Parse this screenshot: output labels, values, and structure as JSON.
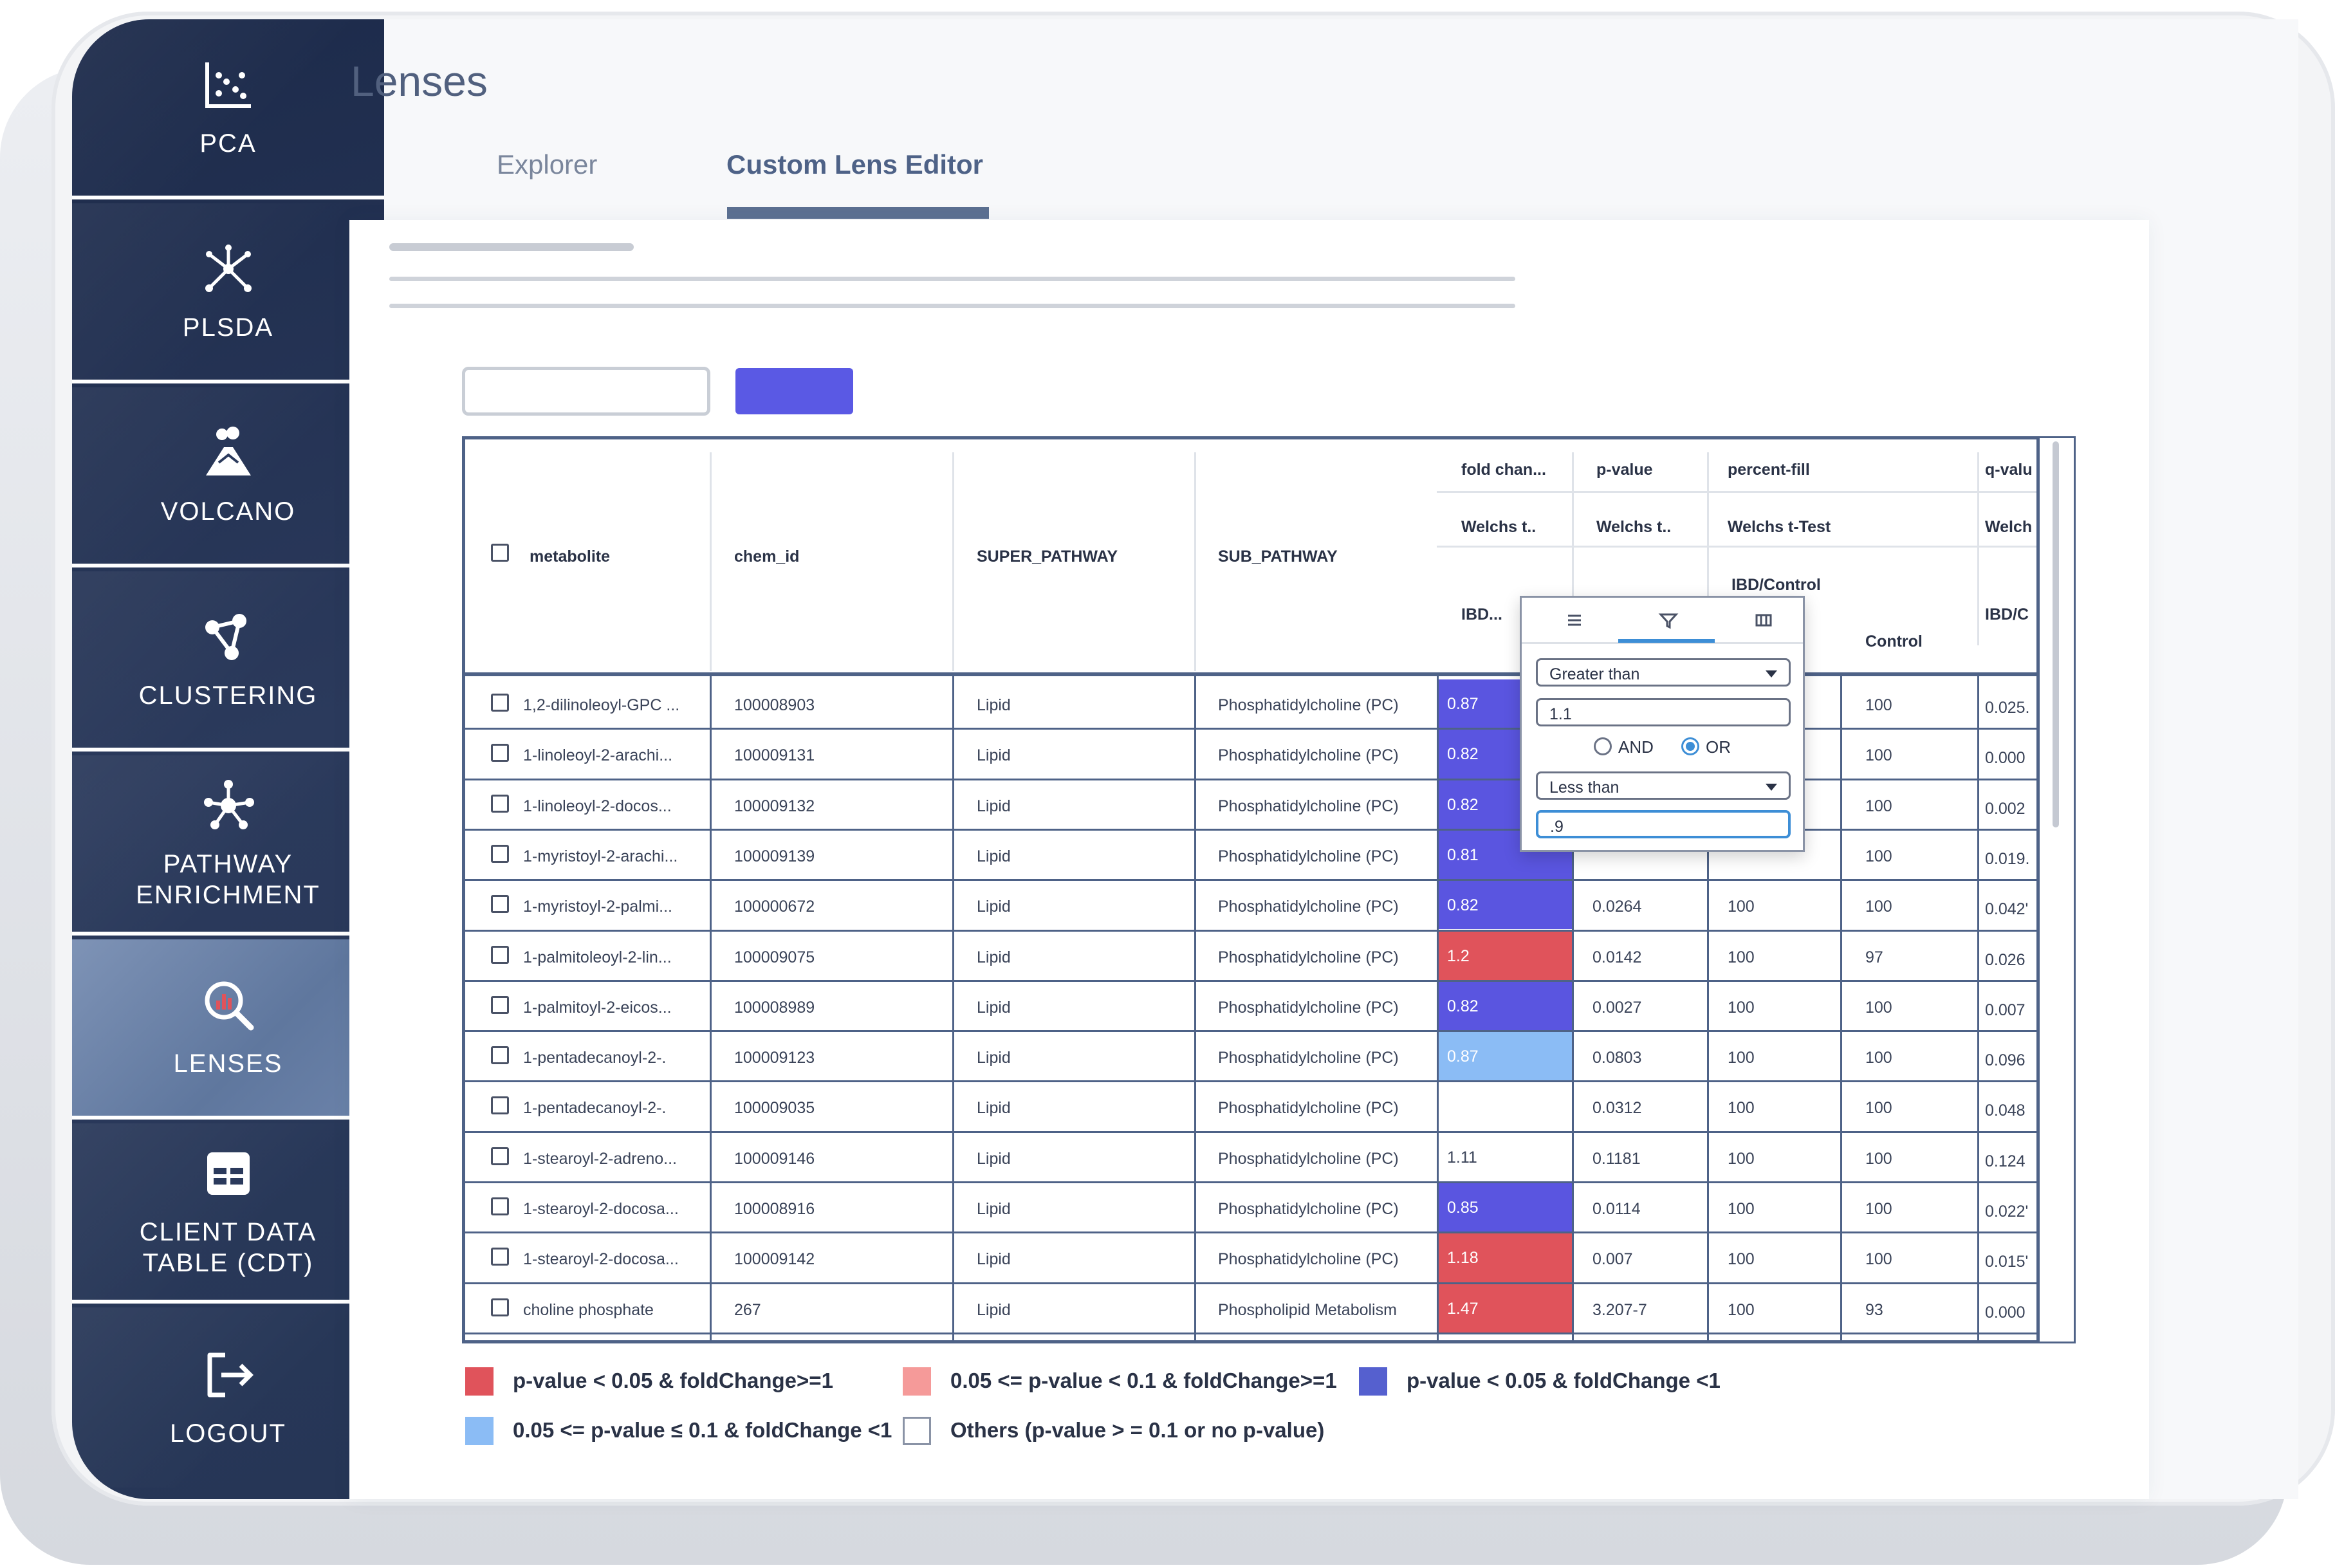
{
  "app": {
    "title": "Lenses"
  },
  "tabs": [
    {
      "label": "Explorer",
      "active": false
    },
    {
      "label": "Custom Lens Editor",
      "active": true
    }
  ],
  "sidebar": {
    "items": [
      {
        "label": "PCA",
        "icon": "scatter-plot-icon",
        "active": false
      },
      {
        "label": "PLSDA",
        "icon": "molecule-network-icon",
        "active": false
      },
      {
        "label": "VOLCANO",
        "icon": "volcano-icon",
        "active": false
      },
      {
        "label": "CLUSTERING",
        "icon": "cluster-nodes-icon",
        "active": false
      },
      {
        "label": "PATHWAY ENRICHMENT",
        "icon": "pathway-network-icon",
        "active": false
      },
      {
        "label": "LENSES",
        "icon": "magnifier-chart-icon",
        "active": true
      },
      {
        "label": "CLIENT DATA TABLE (CDT)",
        "icon": "data-table-icon",
        "active": false
      },
      {
        "label": "LOGOUT",
        "icon": "logout-icon",
        "active": false
      }
    ]
  },
  "table": {
    "headers": {
      "metabolite": "metabolite",
      "chem_id": "chem_id",
      "super_pathway": "SUPER_PATHWAY",
      "sub_pathway": "SUB_PATHWAY",
      "fold_change": "fold chan...",
      "p_value": "p-value",
      "percent_fill": "percent-fill",
      "q_value": "q-valu",
      "welchs_1": "Welchs t..",
      "welchs_2": "Welchs t..",
      "welchs_3": "Welchs t-Test",
      "welchs_4": "Welch",
      "ibd_1": "IBD...",
      "ibd_control": "IBD/Control",
      "control": "Control",
      "ibd_4": "IBD/C"
    },
    "rows": [
      {
        "metabolite": "1,2-dilinoleoyl-GPC ...",
        "chem_id": "100008903",
        "super": "Lipid",
        "sub": "Phosphatidylcholine (PC)",
        "fc": "0.87",
        "pv": "",
        "pf": "",
        "ctrl": "100",
        "qv": "0.025."
      },
      {
        "metabolite": "1-linoleoyl-2-arachi...",
        "chem_id": "100009131",
        "super": "Lipid",
        "sub": "Phosphatidylcholine (PC)",
        "fc": "0.82",
        "pv": "",
        "pf": "",
        "ctrl": "100",
        "qv": "0.000"
      },
      {
        "metabolite": "1-linoleoyl-2-docos...",
        "chem_id": "100009132",
        "super": "Lipid",
        "sub": "Phosphatidylcholine (PC)",
        "fc": "0.82",
        "pv": "",
        "pf": "",
        "ctrl": "100",
        "qv": "0.002"
      },
      {
        "metabolite": "1-myristoyl-2-arachi...",
        "chem_id": "100009139",
        "super": "Lipid",
        "sub": "Phosphatidylcholine (PC)",
        "fc": "0.81",
        "pv": "",
        "pf": "",
        "ctrl": "100",
        "qv": "0.019."
      },
      {
        "metabolite": "1-myristoyl-2-palmi...",
        "chem_id": "100000672",
        "super": "Lipid",
        "sub": "Phosphatidylcholine (PC)",
        "fc": "0.82",
        "pv": "0.0264",
        "pf": "100",
        "ctrl": "100",
        "qv": "0.042'"
      },
      {
        "metabolite": "1-palmitoleoyl-2-lin...",
        "chem_id": "100009075",
        "super": "Lipid",
        "sub": "Phosphatidylcholine (PC)",
        "fc": "1.2",
        "pv": "0.0142",
        "pf": "100",
        "ctrl": "97",
        "qv": "0.026"
      },
      {
        "metabolite": "1-palmitoyl-2-eicos...",
        "chem_id": "100008989",
        "super": "Lipid",
        "sub": "Phosphatidylcholine (PC)",
        "fc": "0.82",
        "pv": "0.0027",
        "pf": "100",
        "ctrl": "100",
        "qv": "0.007"
      },
      {
        "metabolite": "1-pentadecanoyl-2-.",
        "chem_id": "100009123",
        "super": "Lipid",
        "sub": "Phosphatidylcholine (PC)",
        "fc": "0.87",
        "pv": "0.0803",
        "pf": "100",
        "ctrl": "100",
        "qv": "0.096"
      },
      {
        "metabolite": "1-pentadecanoyl-2-.",
        "chem_id": "100009035",
        "super": "Lipid",
        "sub": "Phosphatidylcholine (PC)",
        "fc": "",
        "pv": "0.0312",
        "pf": "100",
        "ctrl": "100",
        "qv": "0.048"
      },
      {
        "metabolite": "1-stearoyl-2-adreno...",
        "chem_id": "100009146",
        "super": "Lipid",
        "sub": "Phosphatidylcholine (PC)",
        "fc": "1.11",
        "pv": "0.1181",
        "pf": "100",
        "ctrl": "100",
        "qv": "0.124"
      },
      {
        "metabolite": "1-stearoyl-2-docosa...",
        "chem_id": "100008916",
        "super": "Lipid",
        "sub": "Phosphatidylcholine (PC)",
        "fc": "0.85",
        "pv": "0.0114",
        "pf": "100",
        "ctrl": "100",
        "qv": "0.022'"
      },
      {
        "metabolite": "1-stearoyl-2-docosa...",
        "chem_id": "100009142",
        "super": "Lipid",
        "sub": "Phosphatidylcholine (PC)",
        "fc": "1.18",
        "pv": "0.007",
        "pf": "100",
        "ctrl": "100",
        "qv": "0.015'"
      },
      {
        "metabolite": "choline phosphate",
        "chem_id": "267",
        "super": "Lipid",
        "sub": "Phospholipid Metabolism",
        "fc": "1.47",
        "pv": "3.207-7",
        "pf": "100",
        "ctrl": "93",
        "qv": "0.000"
      }
    ],
    "fc_colors": [
      "#5a55e0",
      "#5a55e0",
      "#5a55e0",
      "#5a55e0",
      "#5a55e0",
      "#e0535b",
      "#5a55e0",
      "#8bbcf5",
      "none",
      "none",
      "#5a55e0",
      "#e0535b",
      "#e0535b"
    ]
  },
  "filter_popup": {
    "condition1": "Greater than",
    "value1": "1.1",
    "and_label": "AND",
    "or_label": "OR",
    "selected_operator": "OR",
    "condition2": "Less than",
    "value2": ".9"
  },
  "legend": [
    {
      "label": "p-value < 0.05 & foldChange>=1",
      "color": "#e0535b"
    },
    {
      "label": "0.05 <= p-value < 0.1 & foldChange>=1",
      "color": "#f59a99"
    },
    {
      "label": "p-value < 0.05 & foldChange <1",
      "color": "#5560cf"
    },
    {
      "label": "0.05 <= p-value ≤ 0.1 & foldChange <1",
      "color": "#8bbcf5"
    },
    {
      "label": "Others (p-value > = 0.1 or no p-value)",
      "color": "#ffffff"
    }
  ]
}
